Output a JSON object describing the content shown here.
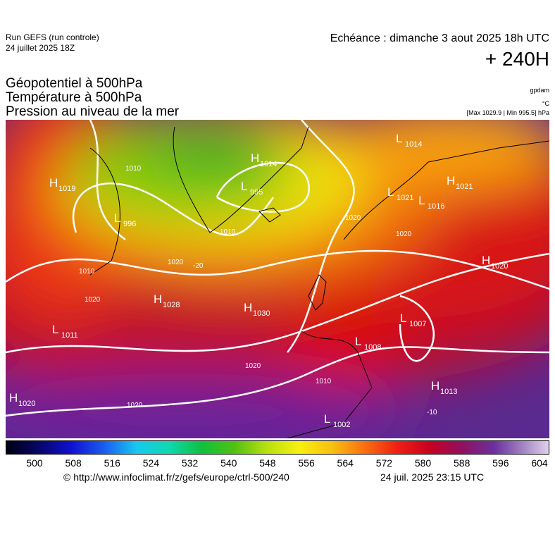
{
  "header": {
    "run": "Run GEFS (run controle)",
    "run_date": "24 juillet 2025 18Z",
    "echeance": "Echéance : dimanche 3 aout 2025 18h UTC",
    "lead": "+ 240H"
  },
  "titles": [
    "Géopotentiel à 500hPa",
    "Température à 500hPa",
    "Pression au niveau de la mer"
  ],
  "units": {
    "geopotential": "gpdam",
    "temperature": "°C",
    "range": "[Max 1029.9 | Min 995.5] hPa"
  },
  "map": {
    "pressure_centers": [
      {
        "letter": "H",
        "value": 1019
      },
      {
        "letter": "H",
        "value": 1014
      },
      {
        "letter": "L",
        "value": 995
      },
      {
        "letter": "L",
        "value": 996
      },
      {
        "letter": "L",
        "value": 1011
      },
      {
        "letter": "H",
        "value": 1028
      },
      {
        "letter": "H",
        "value": 1030
      },
      {
        "letter": "H",
        "value": 1020
      },
      {
        "letter": "H",
        "value": 1020
      },
      {
        "letter": "L",
        "value": 1014
      },
      {
        "letter": "L",
        "value": 1021
      },
      {
        "letter": "H",
        "value": 1021
      },
      {
        "letter": "L",
        "value": 1016
      },
      {
        "letter": "L",
        "value": 1007
      },
      {
        "letter": "L",
        "value": 1008
      },
      {
        "letter": "H",
        "value": 1013
      },
      {
        "letter": "L",
        "value": 1002
      }
    ],
    "contour_labels": [
      1010,
      1020,
      -20,
      1010,
      1020,
      1020,
      1020,
      1020,
      1020,
      1010,
      1010,
      -10
    ]
  },
  "colorbar": {
    "labels": [
      500,
      508,
      516,
      524,
      532,
      540,
      548,
      556,
      564,
      572,
      580,
      588,
      596,
      604
    ]
  },
  "footer": {
    "source": "© http://www.infoclimat.fr/z/gefs/europe/ctrl-500/240",
    "issued": "24 juil. 2025 23:15 UTC"
  }
}
